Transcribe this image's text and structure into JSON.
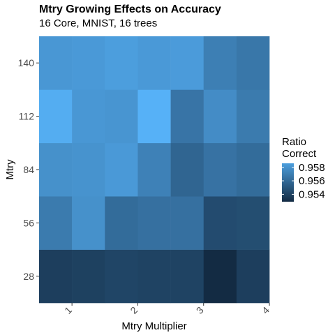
{
  "chart_data": {
    "type": "heatmap",
    "title": "Mtry Growing Effects on Accuracy",
    "subtitle": "16 Core, MNIST, 16 trees",
    "xlabel": "Mtry Multiplier",
    "ylabel": "Mtry",
    "x_ticks": [
      "1",
      "2",
      "3",
      "4"
    ],
    "y_ticks": [
      "28",
      "56",
      "84",
      "112",
      "140"
    ],
    "x_columns": [
      0.75,
      1.25,
      1.75,
      2.25,
      2.75,
      3.25,
      3.75
    ],
    "y_rows": [
      28,
      56,
      84,
      112,
      140
    ],
    "xlim": [
      0.5,
      4.0
    ],
    "ylim": [
      14,
      154
    ],
    "value_range": [
      0.9533,
      0.9595
    ],
    "values": [
      [
        0.9542,
        0.9543,
        0.9545,
        0.9544,
        0.9544,
        0.9533,
        0.9542
      ],
      [
        0.957,
        0.958,
        0.9563,
        0.9565,
        0.9565,
        0.9548,
        0.9549
      ],
      [
        0.958,
        0.9581,
        0.9584,
        0.9573,
        0.956,
        0.9566,
        0.9563
      ],
      [
        0.9593,
        0.9583,
        0.9582,
        0.9595,
        0.9567,
        0.9578,
        0.957
      ],
      [
        0.9583,
        0.9584,
        0.9586,
        0.9584,
        0.9585,
        0.9572,
        0.9568
      ]
    ],
    "color_low": "#132b43",
    "color_high": "#56b1f7",
    "legend": {
      "title_lines": [
        "Ratio",
        "Correct"
      ],
      "entries": [
        0.954,
        0.956,
        0.958
      ],
      "labels": [
        "0.954",
        "0.956",
        "0.958"
      ],
      "placement": "right"
    },
    "grid": true,
    "panel_background": "#ebebeb",
    "grid_color": "#ffffff"
  }
}
